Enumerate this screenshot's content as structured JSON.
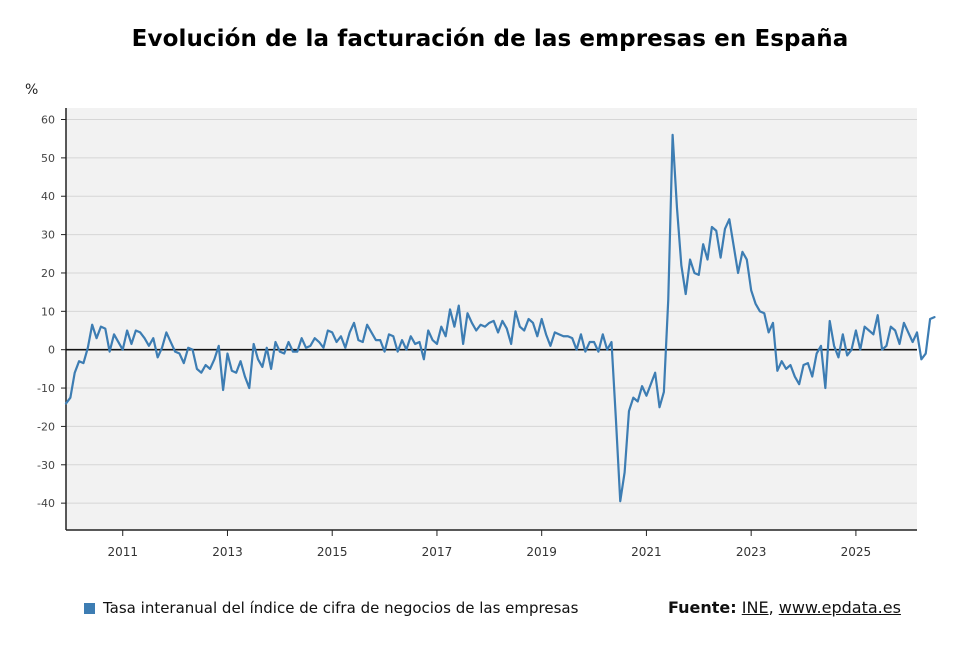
{
  "header": {
    "title": "Evolución de la facturación de las empresas en España"
  },
  "legend": {
    "label": "Tasa interanual del índice de cifra de negocios de las empresas",
    "color": "#3d7db3"
  },
  "source": {
    "label": "Fuente:",
    "links": [
      "INE",
      "www.epdata.es"
    ],
    "separator": ","
  },
  "chart_data": {
    "type": "line",
    "title": "Evolución de la facturación de las empresas en España",
    "ylabel": "%",
    "xlabel": "",
    "ylim": [
      -47,
      63
    ],
    "xlim": [
      "2009-12",
      "2026-03"
    ],
    "yticks": [
      -40,
      -30,
      -20,
      -10,
      0,
      10,
      20,
      30,
      40,
      50,
      60
    ],
    "ytick_labels": [
      "-40",
      "-30",
      "-20",
      "-10",
      "0",
      "10",
      "20",
      "30",
      "40",
      "50",
      "60"
    ],
    "xticks": [
      "2011-01",
      "2013-01",
      "2015-01",
      "2017-01",
      "2019-01",
      "2021-01",
      "2023-01",
      "2025-01"
    ],
    "xtick_labels": [
      "2011",
      "2013",
      "2015",
      "2017",
      "2019",
      "2021",
      "2023",
      "2025"
    ],
    "grid": true,
    "zero_line": true,
    "legend_position": "bottom-left",
    "series": [
      {
        "name": "Tasa interanual del índice de cifra de negocios de las empresas",
        "color": "#3d7db3",
        "start": "2009-12",
        "frequency": "monthly",
        "values": [
          -14,
          -12.5,
          -6,
          -3,
          -3.5,
          0.5,
          6.5,
          3,
          6,
          5.5,
          -0.5,
          4,
          2,
          0,
          5,
          1.5,
          5,
          4.5,
          3,
          1,
          3,
          -2,
          0.5,
          4.5,
          2,
          -0.5,
          -1,
          -3.5,
          0.5,
          0,
          -5,
          -6,
          -4,
          -5,
          -2.5,
          1,
          -10.5,
          -1,
          -5.5,
          -6,
          -3,
          -7,
          -10,
          1.5,
          -2.5,
          -4.5,
          0.5,
          -5,
          2,
          -0.5,
          -1,
          2,
          -0.5,
          -0.5,
          3,
          0.5,
          1,
          3,
          2,
          0.5,
          5,
          4.5,
          2,
          3.5,
          0.5,
          4.5,
          7,
          2.5,
          2,
          6.5,
          4.5,
          2.5,
          2.5,
          -0.5,
          4,
          3.5,
          -0.5,
          2.5,
          0,
          3.5,
          1.5,
          2,
          -2.5,
          5,
          2.5,
          1.5,
          6,
          3.5,
          10.5,
          6,
          11.5,
          1.5,
          9.5,
          7,
          5,
          6.5,
          6,
          7,
          7.5,
          4.5,
          7.5,
          5.5,
          1.5,
          10,
          6,
          5,
          8,
          7,
          3.5,
          8,
          4,
          1,
          4.5,
          4,
          3.5,
          3.5,
          3,
          0,
          4,
          -0.5,
          2,
          2,
          -0.5,
          4,
          0,
          2,
          -18,
          -39.5,
          -32,
          -16,
          -12.5,
          -13.5,
          -9.5,
          -12,
          -9,
          -6,
          -15,
          -11,
          13,
          56,
          37,
          22,
          14.5,
          23.5,
          20,
          19.5,
          27.5,
          23.5,
          32,
          31,
          24,
          31.5,
          34,
          27,
          20,
          25.5,
          23.5,
          15.5,
          12,
          10,
          9.5,
          4.5,
          7,
          -5.5,
          -3,
          -5,
          -4,
          -7,
          -9,
          -4,
          -3.5,
          -7,
          -1,
          1,
          -10,
          7.5,
          1,
          -2,
          4,
          -1.5,
          0,
          5,
          0,
          6,
          5,
          4,
          9,
          0,
          1,
          6,
          5,
          1.5,
          7,
          4.5,
          2,
          4.5,
          -2.5,
          -1,
          8,
          8.5
        ]
      }
    ]
  }
}
